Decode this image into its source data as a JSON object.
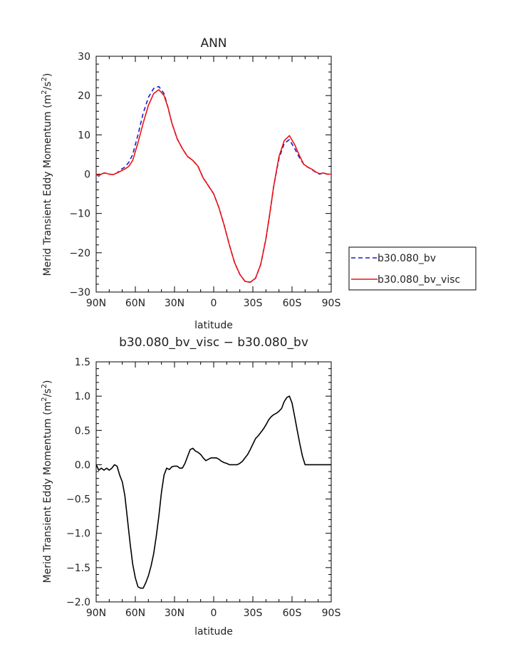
{
  "chart_data": [
    {
      "type": "line",
      "title": "ANN",
      "xlabel": "latitude",
      "ylabel": "Merid Transient Eddy Momentum (m",
      "ylabel_sup": "2",
      "ylabel_tail": "/s",
      "ylabel_sup2": "2",
      "ylabel_end": ")",
      "xlim": [
        90,
        -90
      ],
      "ylim": [
        -30,
        30
      ],
      "xticks": [
        90,
        60,
        30,
        0,
        -30,
        -60,
        -90
      ],
      "xtick_labels": [
        "90N",
        "60N",
        "30N",
        "0",
        "30S",
        "60S",
        "90S"
      ],
      "yticks": [
        -30,
        -20,
        -10,
        0,
        10,
        20,
        30
      ],
      "ytick_labels": [
        "−30",
        "−20",
        "−10",
        "0",
        "10",
        "20",
        "30"
      ],
      "legend_position": "right",
      "series": [
        {
          "name": "b30.080_bv",
          "color": "#1a1acc",
          "dash": "dashed",
          "x": [
            90,
            88,
            86,
            84,
            82,
            80,
            77,
            74,
            71,
            68,
            65,
            62,
            58,
            54,
            50,
            46,
            42,
            38,
            35,
            32,
            28,
            24,
            20,
            16,
            12,
            8,
            4,
            0,
            -4,
            -8,
            -12,
            -16,
            -20,
            -24,
            -28,
            -32,
            -36,
            -40,
            -43,
            -46,
            -50,
            -54,
            -58,
            -62,
            -66,
            -69,
            -72,
            -75,
            -78,
            -81,
            -84,
            -87,
            -90
          ],
          "y": [
            0.0,
            -0.5,
            0.0,
            0.3,
            0.2,
            0.0,
            -0.1,
            0.3,
            1.2,
            1.8,
            3.0,
            5.0,
            10.0,
            15.5,
            19.5,
            21.8,
            22.3,
            20.5,
            17.0,
            13.0,
            9.0,
            6.5,
            4.5,
            3.5,
            2.0,
            -1.0,
            -3.0,
            -5.0,
            -8.5,
            -13.0,
            -18.0,
            -22.5,
            -25.5,
            -27.3,
            -27.5,
            -26.5,
            -23.0,
            -16.5,
            -10.0,
            -3.0,
            4.0,
            7.8,
            8.8,
            6.5,
            4.0,
            2.5,
            1.8,
            1.2,
            0.5,
            0.0,
            0.3,
            0.0,
            0.0
          ]
        },
        {
          "name": "b30.080_bv_visc",
          "color": "#ee1111",
          "dash": "solid",
          "x": [
            90,
            88,
            86,
            84,
            82,
            80,
            77,
            74,
            71,
            68,
            65,
            62,
            58,
            54,
            50,
            46,
            42,
            38,
            35,
            32,
            28,
            24,
            20,
            16,
            12,
            8,
            4,
            0,
            -4,
            -8,
            -12,
            -16,
            -20,
            -24,
            -28,
            -32,
            -36,
            -40,
            -43,
            -46,
            -50,
            -54,
            -58,
            -62,
            -66,
            -69,
            -72,
            -75,
            -78,
            -81,
            -84,
            -87,
            -90
          ],
          "y": [
            0.0,
            -0.4,
            0.0,
            0.3,
            0.2,
            0.0,
            -0.1,
            0.3,
            0.8,
            1.3,
            2.0,
            3.5,
            8.0,
            13.0,
            17.5,
            20.5,
            21.5,
            20.0,
            17.0,
            13.0,
            9.0,
            6.5,
            4.5,
            3.5,
            2.0,
            -1.0,
            -3.0,
            -5.0,
            -8.5,
            -13.0,
            -18.0,
            -22.5,
            -25.5,
            -27.3,
            -27.5,
            -26.5,
            -23.0,
            -16.5,
            -10.0,
            -3.0,
            4.5,
            8.5,
            9.8,
            7.5,
            4.5,
            2.5,
            1.8,
            1.3,
            0.6,
            0.1,
            0.3,
            0.0,
            0.0
          ]
        }
      ]
    },
    {
      "type": "line",
      "title": "b30.080_bv_visc − b30.080_bv",
      "xlabel": "latitude",
      "ylabel": "Merid Transient Eddy Momentum (m",
      "ylabel_sup": "2",
      "ylabel_tail": "/s",
      "ylabel_sup2": "2",
      "ylabel_end": ")",
      "xlim": [
        90,
        -90
      ],
      "ylim": [
        -2.0,
        1.5
      ],
      "xticks": [
        90,
        60,
        30,
        0,
        -30,
        -60,
        -90
      ],
      "xtick_labels": [
        "90N",
        "60N",
        "30N",
        "0",
        "30S",
        "60S",
        "90S"
      ],
      "yticks": [
        -2.0,
        -1.5,
        -1.0,
        -0.5,
        0.0,
        0.5,
        1.0,
        1.5
      ],
      "ytick_labels": [
        "−2.0",
        "−1.5",
        "−1.0",
        "−0.5",
        "0.0",
        "0.5",
        "1.0",
        "1.5"
      ],
      "series": [
        {
          "name": "",
          "color": "#000000",
          "dash": "solid",
          "x": [
            90,
            88,
            86,
            84,
            82,
            80,
            78,
            76,
            74,
            72,
            70,
            68,
            66,
            64,
            62,
            60,
            58,
            56,
            54,
            52,
            50,
            48,
            46,
            44,
            42,
            40,
            38,
            36,
            34,
            32,
            30,
            28,
            26,
            24,
            22,
            20,
            18,
            16,
            14,
            12,
            10,
            8,
            6,
            4,
            2,
            0,
            -2,
            -4,
            -6,
            -8,
            -10,
            -12,
            -14,
            -16,
            -18,
            -20,
            -22,
            -24,
            -26,
            -28,
            -30,
            -32,
            -34,
            -36,
            -38,
            -40,
            -42,
            -44,
            -46,
            -48,
            -50,
            -52,
            -54,
            -56,
            -58,
            -60,
            -62,
            -64,
            -66,
            -68,
            -70,
            -72,
            -74,
            -76,
            -78,
            -80,
            -82,
            -84,
            -86,
            -88,
            -90
          ],
          "y": [
            0.0,
            -0.08,
            -0.05,
            -0.08,
            -0.05,
            -0.08,
            -0.05,
            0.0,
            -0.02,
            -0.15,
            -0.25,
            -0.45,
            -0.8,
            -1.15,
            -1.45,
            -1.65,
            -1.78,
            -1.8,
            -1.8,
            -1.72,
            -1.62,
            -1.48,
            -1.3,
            -1.05,
            -0.75,
            -0.4,
            -0.15,
            -0.05,
            -0.07,
            -0.03,
            -0.02,
            -0.02,
            -0.05,
            -0.05,
            0.02,
            0.12,
            0.22,
            0.24,
            0.2,
            0.18,
            0.15,
            0.1,
            0.06,
            0.08,
            0.1,
            0.1,
            0.1,
            0.08,
            0.05,
            0.03,
            0.02,
            0.0,
            0.0,
            0.0,
            0.0,
            0.02,
            0.05,
            0.1,
            0.15,
            0.22,
            0.3,
            0.38,
            0.42,
            0.47,
            0.52,
            0.58,
            0.65,
            0.7,
            0.73,
            0.75,
            0.78,
            0.82,
            0.92,
            0.98,
            1.0,
            0.9,
            0.7,
            0.5,
            0.3,
            0.12,
            0.0,
            0.0,
            0.0,
            0.0,
            0.0,
            0.0,
            0.0,
            0.0,
            0.0,
            0.0,
            0.0
          ]
        }
      ]
    }
  ]
}
